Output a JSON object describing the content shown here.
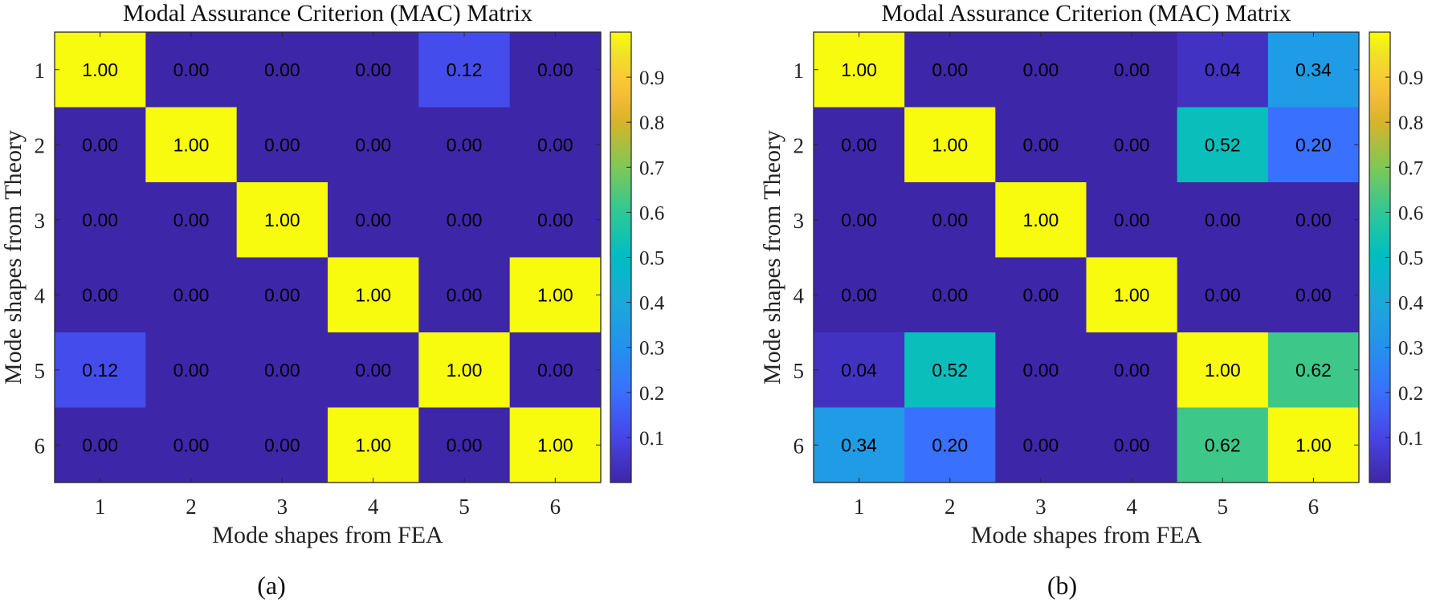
{
  "chart_data": [
    {
      "type": "heatmap",
      "title": "Modal Assurance Criterion (MAC) Matrix",
      "xlabel": "Mode shapes from FEA",
      "ylabel": "Mode shapes from Theory",
      "caption": "(a)",
      "x_ticks": [
        "1",
        "2",
        "3",
        "4",
        "5",
        "6"
      ],
      "y_ticks": [
        "1",
        "2",
        "3",
        "4",
        "5",
        "6"
      ],
      "values": [
        [
          1.0,
          0.0,
          0.0,
          0.0,
          0.12,
          0.0
        ],
        [
          0.0,
          1.0,
          0.0,
          0.0,
          0.0,
          0.0
        ],
        [
          0.0,
          0.0,
          1.0,
          0.0,
          0.0,
          0.0
        ],
        [
          0.0,
          0.0,
          0.0,
          1.0,
          0.0,
          1.0
        ],
        [
          0.12,
          0.0,
          0.0,
          0.0,
          1.0,
          0.0
        ],
        [
          0.0,
          0.0,
          0.0,
          1.0,
          0.0,
          1.0
        ]
      ],
      "cell_labels": [
        [
          "1.00",
          "0.00",
          "0.00",
          "0.00",
          "0.12",
          "0.00"
        ],
        [
          "0.00",
          "1.00",
          "0.00",
          "0.00",
          "0.00",
          "0.00"
        ],
        [
          "0.00",
          "0.00",
          "1.00",
          "0.00",
          "0.00",
          "0.00"
        ],
        [
          "0.00",
          "0.00",
          "0.00",
          "1.00",
          "0.00",
          "1.00"
        ],
        [
          "0.12",
          "0.00",
          "0.00",
          "0.00",
          "1.00",
          "0.00"
        ],
        [
          "0.00",
          "0.00",
          "0.00",
          "1.00",
          "0.00",
          "1.00"
        ]
      ],
      "colorbar": {
        "colormap": "parula",
        "range": [
          0.0,
          1.0
        ],
        "ticks": [
          0.1,
          0.2,
          0.3,
          0.4,
          0.5,
          0.6,
          0.7,
          0.8,
          0.9
        ],
        "tick_labels": [
          "0.1",
          "0.2",
          "0.3",
          "0.4",
          "0.5",
          "0.6",
          "0.7",
          "0.8",
          "0.9"
        ]
      }
    },
    {
      "type": "heatmap",
      "title": "Modal Assurance Criterion (MAC) Matrix",
      "xlabel": "Mode shapes from FEA",
      "ylabel": "Mode shapes from Theory",
      "caption": "(b)",
      "x_ticks": [
        "1",
        "2",
        "3",
        "4",
        "5",
        "6"
      ],
      "y_ticks": [
        "1",
        "2",
        "3",
        "4",
        "5",
        "6"
      ],
      "values": [
        [
          1.0,
          0.0,
          0.0,
          0.0,
          0.04,
          0.34
        ],
        [
          0.0,
          1.0,
          0.0,
          0.0,
          0.52,
          0.2
        ],
        [
          0.0,
          0.0,
          1.0,
          0.0,
          0.0,
          0.0
        ],
        [
          0.0,
          0.0,
          0.0,
          1.0,
          0.0,
          0.0
        ],
        [
          0.04,
          0.52,
          0.0,
          0.0,
          1.0,
          0.62
        ],
        [
          0.34,
          0.2,
          0.0,
          0.0,
          0.62,
          1.0
        ]
      ],
      "cell_labels": [
        [
          "1.00",
          "0.00",
          "0.00",
          "0.00",
          "0.04",
          "0.34"
        ],
        [
          "0.00",
          "1.00",
          "0.00",
          "0.00",
          "0.52",
          "0.20"
        ],
        [
          "0.00",
          "0.00",
          "1.00",
          "0.00",
          "0.00",
          "0.00"
        ],
        [
          "0.00",
          "0.00",
          "0.00",
          "1.00",
          "0.00",
          "0.00"
        ],
        [
          "0.04",
          "0.52",
          "0.00",
          "0.00",
          "1.00",
          "0.62"
        ],
        [
          "0.34",
          "0.20",
          "0.00",
          "0.00",
          "0.62",
          "1.00"
        ]
      ],
      "colorbar": {
        "colormap": "parula",
        "range": [
          0.0,
          1.0
        ],
        "ticks": [
          0.1,
          0.2,
          0.3,
          0.4,
          0.5,
          0.6,
          0.7,
          0.8,
          0.9
        ],
        "tick_labels": [
          "0.1",
          "0.2",
          "0.3",
          "0.4",
          "0.5",
          "0.6",
          "0.7",
          "0.8",
          "0.9"
        ]
      }
    }
  ]
}
